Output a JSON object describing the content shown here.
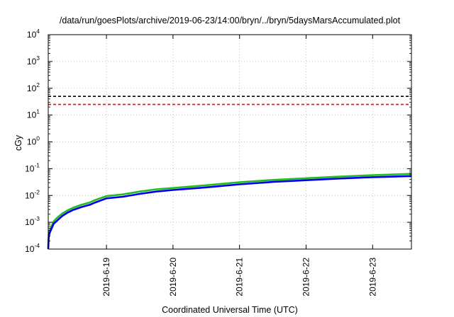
{
  "chart_data": {
    "type": "line",
    "title": "/data/run/goesPlots/archive/2019-06-23/14:00/bryn/../bryn/5daysMarsAccumulated.plot",
    "xlabel": "Coordinated Universal Time (UTC)",
    "ylabel": "cGy",
    "yscale": "log",
    "ylim": [
      0.0001,
      10000
    ],
    "xlim": [
      "2019-06-18 03:00",
      "2019-06-23 14:00"
    ],
    "y_ticks": [
      {
        "value": 0.0001,
        "base": "10",
        "exp": "-4"
      },
      {
        "value": 0.001,
        "base": "10",
        "exp": "-3"
      },
      {
        "value": 0.01,
        "base": "10",
        "exp": "-2"
      },
      {
        "value": 0.1,
        "base": "10",
        "exp": "-1"
      },
      {
        "value": 1,
        "base": "10",
        "exp": "0"
      },
      {
        "value": 10,
        "base": "10",
        "exp": "1"
      },
      {
        "value": 100,
        "base": "10",
        "exp": "2"
      },
      {
        "value": 1000,
        "base": "10",
        "exp": "3"
      },
      {
        "value": 10000,
        "base": "10",
        "exp": "4"
      }
    ],
    "x_ticks": [
      {
        "value": "2019-06-19 00:00",
        "label": "2019-6-19"
      },
      {
        "value": "2019-06-20 00:00",
        "label": "2019-6-20"
      },
      {
        "value": "2019-06-21 00:00",
        "label": "2019-6-21"
      },
      {
        "value": "2019-06-22 00:00",
        "label": "2019-6-22"
      },
      {
        "value": "2019-06-23 00:00",
        "label": "2019-6-23"
      }
    ],
    "grid": true,
    "reference_lines": [
      {
        "y": 50,
        "color": "#000000",
        "style": "dashed"
      },
      {
        "y": 25,
        "color": "#ff0000",
        "style": "dashed"
      }
    ],
    "series": [
      {
        "color": "#22bb22",
        "x": [
          "2019-06-18 03:00",
          "2019-06-18 03:10",
          "2019-06-18 03:30",
          "2019-06-18 05:00",
          "2019-06-18 06:00",
          "2019-06-18 08:00",
          "2019-06-18 10:00",
          "2019-06-18 12:00",
          "2019-06-18 15:00",
          "2019-06-18 18:00",
          "2019-06-18 20:00",
          "2019-06-19 00:00",
          "2019-06-19 06:00",
          "2019-06-19 12:00",
          "2019-06-19 18:00",
          "2019-06-20 00:00",
          "2019-06-20 12:00",
          "2019-06-21 00:00",
          "2019-06-21 12:00",
          "2019-06-22 00:00",
          "2019-06-22 12:00",
          "2019-06-23 00:00",
          "2019-06-23 14:00"
        ],
        "y": [
          0.00012,
          0.00035,
          0.0005,
          0.0011,
          0.0014,
          0.0021,
          0.0028,
          0.0035,
          0.0045,
          0.0055,
          0.0068,
          0.0095,
          0.011,
          0.014,
          0.017,
          0.019,
          0.024,
          0.031,
          0.038,
          0.044,
          0.051,
          0.057,
          0.064
        ]
      },
      {
        "color": "#0000ee",
        "x": [
          "2019-06-18 03:00",
          "2019-06-18 03:10",
          "2019-06-18 03:30",
          "2019-06-18 05:00",
          "2019-06-18 06:00",
          "2019-06-18 08:00",
          "2019-06-18 10:00",
          "2019-06-18 12:00",
          "2019-06-18 15:00",
          "2019-06-18 18:00",
          "2019-06-18 20:00",
          "2019-06-19 00:00",
          "2019-06-19 06:00",
          "2019-06-19 12:00",
          "2019-06-19 18:00",
          "2019-06-20 00:00",
          "2019-06-20 12:00",
          "2019-06-21 00:00",
          "2019-06-21 12:00",
          "2019-06-22 00:00",
          "2019-06-22 12:00",
          "2019-06-23 00:00",
          "2019-06-23 14:00"
        ],
        "y": [
          0.0001,
          0.00028,
          0.0004,
          0.0009,
          0.0011,
          0.0017,
          0.0023,
          0.0029,
          0.0037,
          0.0045,
          0.0055,
          0.0078,
          0.009,
          0.0115,
          0.014,
          0.016,
          0.02,
          0.026,
          0.032,
          0.037,
          0.043,
          0.048,
          0.053
        ]
      }
    ]
  }
}
